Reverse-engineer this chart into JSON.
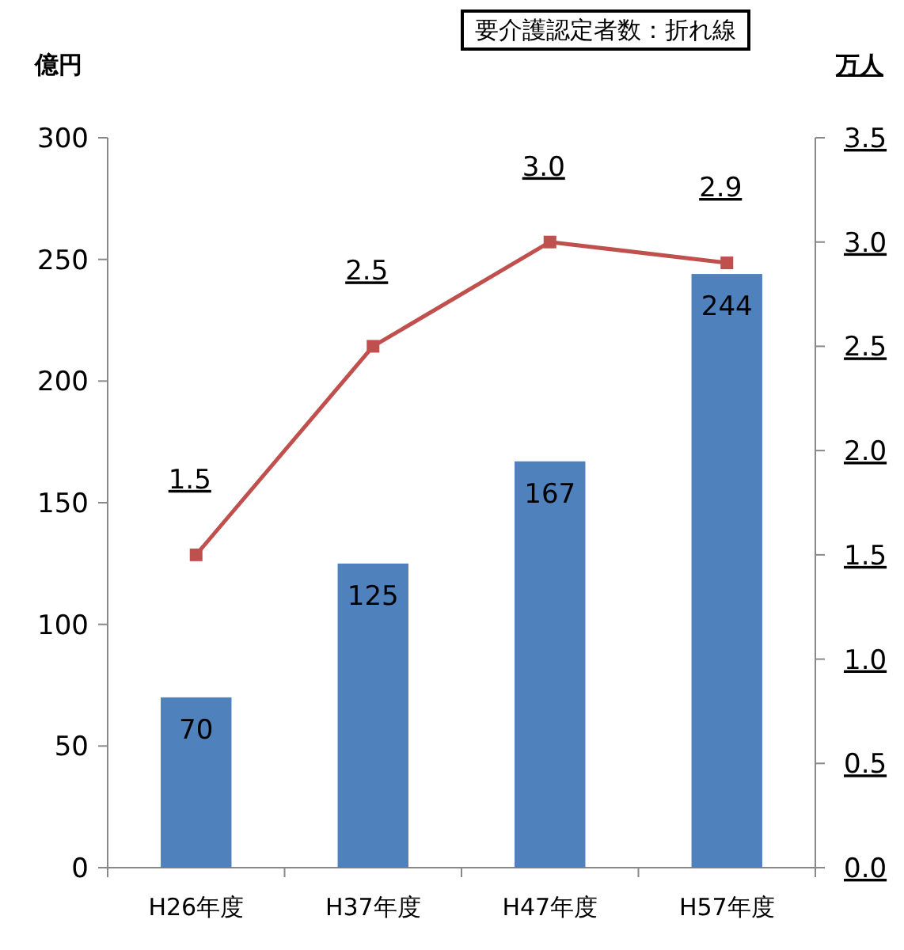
{
  "chart_data": {
    "type": "bar",
    "categories": [
      "H26年度",
      "H37年度",
      "H47年度",
      "H57年度"
    ],
    "series": [
      {
        "color": "#4f81bd",
        "values": [
          70,
          125,
          167,
          244
        ]
      },
      {
        "type": "line",
        "axis": "y2",
        "color": "#c0504d",
        "marker": "square",
        "values": [
          1.5,
          2.5,
          3.0,
          2.9
        ],
        "value_labels": [
          "1.5",
          "2.5",
          "3.0",
          "2.9"
        ]
      }
    ],
    "ylabel": "億円",
    "y2label": "万人",
    "ylim": [
      0,
      300
    ],
    "yticks": [
      0,
      50,
      100,
      150,
      200,
      250,
      300
    ],
    "y2lim": [
      0,
      3.5
    ],
    "y2ticks": [
      {
        "value": 0,
        "label": "0.0"
      },
      {
        "value": 0.5,
        "label": "0.5"
      },
      {
        "value": 1,
        "label": "1.0"
      },
      {
        "value": 1.5,
        "label": "1.5"
      },
      {
        "value": 2,
        "label": "2.0"
      },
      {
        "value": 2.5,
        "label": "2.5"
      },
      {
        "value": 3,
        "label": "3.0"
      },
      {
        "value": 3.5,
        "label": "3.5"
      }
    ],
    "data_labels": true,
    "grid": false,
    "annotations": [
      "要介護認定者数：折れ線"
    ]
  }
}
